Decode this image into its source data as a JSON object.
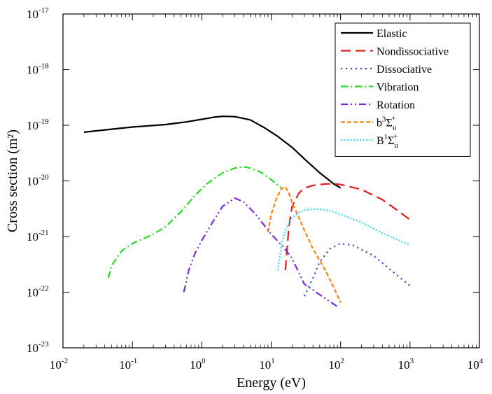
{
  "chart_data": {
    "type": "line",
    "xlabel": "Energy (eV)",
    "ylabel": "Cross section (m²)",
    "xscale": "log",
    "yscale": "log",
    "xlim": [
      0.01,
      10000
    ],
    "ylim": [
      1e-23,
      1e-17
    ],
    "grid": false,
    "legend_position": "top-right",
    "x_tick_labels": [
      {
        "base": "10",
        "exp": "-2"
      },
      {
        "base": "10",
        "exp": "-1"
      },
      {
        "base": "10",
        "exp": "0"
      },
      {
        "base": "10",
        "exp": "1"
      },
      {
        "base": "10",
        "exp": "2"
      },
      {
        "base": "10",
        "exp": "3"
      },
      {
        "base": "10",
        "exp": "4"
      }
    ],
    "y_tick_labels": [
      {
        "base": "10",
        "exp": "-23"
      },
      {
        "base": "10",
        "exp": "-22"
      },
      {
        "base": "10",
        "exp": "-21"
      },
      {
        "base": "10",
        "exp": "-20"
      },
      {
        "base": "10",
        "exp": "-19"
      },
      {
        "base": "10",
        "exp": "-18"
      },
      {
        "base": "10",
        "exp": "-17"
      }
    ],
    "series": [
      {
        "name": "Elastic",
        "color": "#000000",
        "dash": "solid",
        "x": [
          0.02,
          0.05,
          0.1,
          0.3,
          0.6,
          1,
          1.5,
          2,
          3,
          5,
          8,
          12,
          20,
          30,
          50,
          80,
          100
        ],
        "y": [
          7.5e-20,
          8.5e-20,
          9.3e-20,
          1.03e-19,
          1.15e-19,
          1.28e-19,
          1.4e-19,
          1.45e-19,
          1.43e-19,
          1.25e-19,
          9e-20,
          6.5e-20,
          4e-20,
          2.5e-20,
          1.4e-20,
          8.8e-21,
          7.5e-21
        ]
      },
      {
        "name": "Nondissociative",
        "color": "#e41a1c",
        "dash": "longdash",
        "x": [
          16,
          18,
          20,
          25,
          30,
          40,
          60,
          80,
          100,
          200,
          400,
          700,
          1000
        ],
        "y": [
          2.5e-22,
          1.5e-21,
          3.5e-21,
          6e-21,
          7.4e-21,
          8.3e-21,
          8.8e-21,
          8.9e-21,
          8.6e-21,
          7e-21,
          4.6e-21,
          2.8e-21,
          2e-21
        ]
      },
      {
        "name": "Dissociative",
        "color": "#1f3fd6",
        "dash": "dotted",
        "x": [
          30,
          40,
          50,
          70,
          100,
          150,
          300,
          600,
          1000
        ],
        "y": [
          8.5e-23,
          1.8e-22,
          3.5e-22,
          6e-22,
          7.5e-22,
          7e-22,
          4.5e-22,
          2.2e-22,
          1.3e-22
        ]
      },
      {
        "name": "Vibration",
        "color": "#22dd22",
        "dash": "dashdot",
        "x": [
          0.045,
          0.05,
          0.07,
          0.1,
          0.2,
          0.3,
          0.5,
          0.8,
          1.2,
          2,
          3,
          4,
          5,
          7,
          10,
          14
        ],
        "y": [
          1.8e-22,
          3e-22,
          5.5e-22,
          7.5e-22,
          1.1e-21,
          1.5e-21,
          2.8e-21,
          5.5e-21,
          9e-21,
          1.4e-20,
          1.7e-20,
          1.8e-20,
          1.7e-20,
          1.45e-20,
          1.05e-20,
          7.5e-21
        ]
      },
      {
        "name": "Rotation",
        "color": "#7a2be8",
        "dash": "dashdotdot",
        "x": [
          0.55,
          0.65,
          0.8,
          1,
          1.5,
          2,
          3,
          4,
          6,
          10,
          15,
          20,
          30,
          50,
          90
        ],
        "y": [
          1e-22,
          2.5e-22,
          5e-22,
          8.5e-22,
          2e-21,
          3.5e-21,
          4.9e-21,
          4.2e-21,
          2.5e-21,
          1.1e-21,
          6.5e-22,
          4e-22,
          1.4e-22,
          9e-23,
          5.5e-23
        ]
      },
      {
        "name": "b³Σu⁺",
        "label_main": "b",
        "label_sup1": "3",
        "label_sigma": "Σ",
        "label_sub": "u",
        "label_sup2": "+",
        "color": "#ff7f0e",
        "dash": "shortdash",
        "x": [
          9,
          10,
          12,
          14,
          16,
          18,
          20,
          25,
          30,
          40,
          60,
          80,
          100
        ],
        "y": [
          1.2e-21,
          2.5e-21,
          5e-21,
          7.2e-21,
          7.8e-21,
          6e-21,
          4e-21,
          2.2e-21,
          1.3e-21,
          6e-22,
          2.5e-22,
          1.2e-22,
          6.5e-23
        ]
      },
      {
        "name": "B¹Σu⁺",
        "label_main": "B",
        "label_sup1": "1",
        "label_sigma": "Σ",
        "label_sub": "u",
        "label_sup2": "+",
        "color": "#33dcf0",
        "dash": "densedot",
        "x": [
          12.5,
          14,
          16,
          20,
          25,
          30,
          40,
          50,
          70,
          100,
          200,
          400,
          700,
          1000
        ],
        "y": [
          2.5e-22,
          7e-22,
          1.3e-21,
          2.2e-21,
          2.7e-21,
          3e-21,
          3.1e-21,
          3.1e-21,
          2.9e-21,
          2.5e-21,
          1.8e-21,
          1.15e-21,
          8.5e-22,
          7e-22
        ]
      }
    ]
  }
}
